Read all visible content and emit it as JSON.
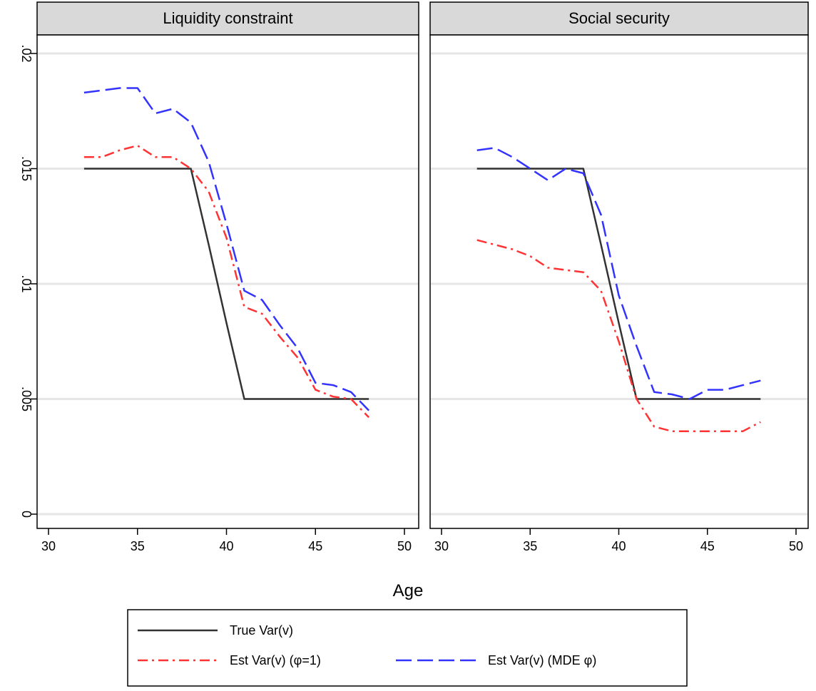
{
  "chart_data": {
    "type": "line",
    "xlabel": "Age",
    "ylabel": "",
    "xlim": [
      30,
      50
    ],
    "ylim": [
      0,
      0.02
    ],
    "xticks": [
      {
        "value": 30,
        "label": "30"
      },
      {
        "value": 35,
        "label": "35"
      },
      {
        "value": 40,
        "label": "40"
      },
      {
        "value": 45,
        "label": "45"
      },
      {
        "value": 50,
        "label": "50"
      }
    ],
    "yticks": [
      {
        "value": 0,
        "label": "0"
      },
      {
        "value": 0.005,
        "label": ".005"
      },
      {
        "value": 0.01,
        "label": ".01"
      },
      {
        "value": 0.015,
        "label": ".015"
      },
      {
        "value": 0.02,
        "label": ".02"
      }
    ],
    "grid": "horizontal",
    "legend_position": "bottom",
    "legend": [
      {
        "label": "True Var(v)",
        "color": "#333333",
        "style": "solid"
      },
      {
        "label": "Est Var(v) (φ=1)",
        "color": "#ff3333",
        "style": "dash-dot"
      },
      {
        "label": "Est Var(v) (MDE φ)",
        "color": "#3333ff",
        "style": "long-dash"
      }
    ],
    "panels": [
      {
        "title": "Liquidity constraint",
        "series": [
          {
            "name": "True Var(v)",
            "color": "#333333",
            "style": "solid",
            "x": [
              32,
              33,
              34,
              35,
              36,
              37,
              38,
              39,
              40,
              41,
              42,
              43,
              44,
              45,
              46,
              47,
              48
            ],
            "y": [
              0.015,
              0.015,
              0.015,
              0.015,
              0.015,
              0.015,
              0.015,
              0.0117,
              0.0083,
              0.005,
              0.005,
              0.005,
              0.005,
              0.005,
              0.005,
              0.005,
              0.005
            ]
          },
          {
            "name": "Est Var(v) (φ=1)",
            "color": "#ff3333",
            "style": "dash-dot",
            "x": [
              32,
              33,
              34,
              35,
              36,
              37,
              38,
              39,
              40,
              41,
              42,
              43,
              44,
              45,
              46,
              47,
              48
            ],
            "y": [
              0.0155,
              0.0155,
              0.0158,
              0.016,
              0.0155,
              0.0155,
              0.015,
              0.014,
              0.012,
              0.009,
              0.0087,
              0.0077,
              0.0068,
              0.0054,
              0.0051,
              0.005,
              0.0042
            ]
          },
          {
            "name": "Est Var(v) (MDE φ)",
            "color": "#3333ff",
            "style": "long-dash",
            "x": [
              32,
              33,
              34,
              35,
              36,
              37,
              38,
              39,
              40,
              41,
              42,
              43,
              44,
              45,
              46,
              47,
              48
            ],
            "y": [
              0.0183,
              0.0184,
              0.0185,
              0.0185,
              0.0174,
              0.0176,
              0.017,
              0.0153,
              0.0126,
              0.0097,
              0.0093,
              0.0082,
              0.0072,
              0.0057,
              0.0056,
              0.0053,
              0.0045
            ]
          }
        ]
      },
      {
        "title": "Social security",
        "series": [
          {
            "name": "True Var(v)",
            "color": "#333333",
            "style": "solid",
            "x": [
              32,
              33,
              34,
              35,
              36,
              37,
              38,
              39,
              40,
              41,
              42,
              43,
              44,
              45,
              46,
              47,
              48
            ],
            "y": [
              0.015,
              0.015,
              0.015,
              0.015,
              0.015,
              0.015,
              0.015,
              0.0117,
              0.0083,
              0.005,
              0.005,
              0.005,
              0.005,
              0.005,
              0.005,
              0.005,
              0.005
            ]
          },
          {
            "name": "Est Var(v) (φ=1)",
            "color": "#ff3333",
            "style": "dash-dot",
            "x": [
              32,
              33,
              34,
              35,
              36,
              37,
              38,
              39,
              40,
              41,
              42,
              43,
              44,
              45,
              46,
              47,
              48
            ],
            "y": [
              0.0119,
              0.0117,
              0.0115,
              0.0112,
              0.0107,
              0.0106,
              0.0105,
              0.0097,
              0.0075,
              0.005,
              0.0038,
              0.0036,
              0.0036,
              0.0036,
              0.0036,
              0.0036,
              0.004
            ]
          },
          {
            "name": "Est Var(v) (MDE φ)",
            "color": "#3333ff",
            "style": "long-dash",
            "x": [
              32,
              33,
              34,
              35,
              36,
              37,
              38,
              39,
              40,
              41,
              42,
              43,
              44,
              45,
              46,
              47,
              48
            ],
            "y": [
              0.0158,
              0.0159,
              0.0155,
              0.015,
              0.0145,
              0.015,
              0.0148,
              0.013,
              0.0095,
              0.0073,
              0.0053,
              0.0052,
              0.005,
              0.0054,
              0.0054,
              0.0056,
              0.0058
            ]
          }
        ]
      }
    ]
  }
}
